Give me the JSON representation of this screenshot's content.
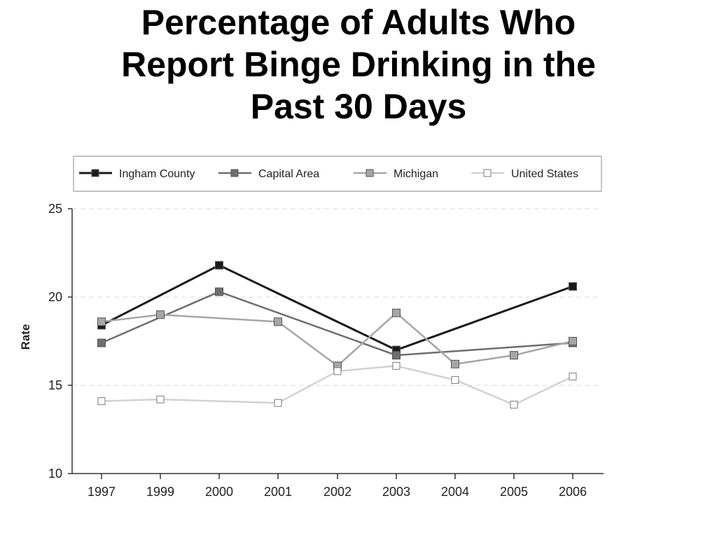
{
  "chart_data": {
    "type": "line",
    "title_lines": [
      "Percentage of Adults Who",
      "Report Binge Drinking in the",
      "Past 30 Days"
    ],
    "xlabel": "",
    "ylabel": "Rate",
    "categories": [
      "1997",
      "1999",
      "2000",
      "2001",
      "2002",
      "2003",
      "2004",
      "2005",
      "2006"
    ],
    "ylim": [
      10,
      25
    ],
    "yticks": [
      "10",
      "15",
      "20",
      "25"
    ],
    "grid": "horizontal dashed",
    "legend_position": "top",
    "series": [
      {
        "name": "Ingham County",
        "color": "#1a1a1a",
        "fill": "#1a1a1a",
        "values": [
          18.4,
          null,
          21.8,
          null,
          null,
          17.0,
          null,
          null,
          20.6
        ]
      },
      {
        "name": "Capital Area",
        "color": "#6e6e6e",
        "fill": "#6e6e6e",
        "values": [
          17.4,
          null,
          20.3,
          null,
          null,
          16.7,
          null,
          null,
          17.4
        ]
      },
      {
        "name": "Michigan",
        "color": "#a6a6a6",
        "fill": "#a6a6a6",
        "values": [
          18.6,
          19.0,
          null,
          18.6,
          16.1,
          19.1,
          16.2,
          16.7,
          17.5
        ]
      },
      {
        "name": "United States",
        "color": "#d2d2d2",
        "fill": "#ffffff",
        "values": [
          14.1,
          14.2,
          null,
          14.0,
          15.8,
          16.1,
          15.3,
          13.9,
          15.5
        ]
      }
    ]
  }
}
